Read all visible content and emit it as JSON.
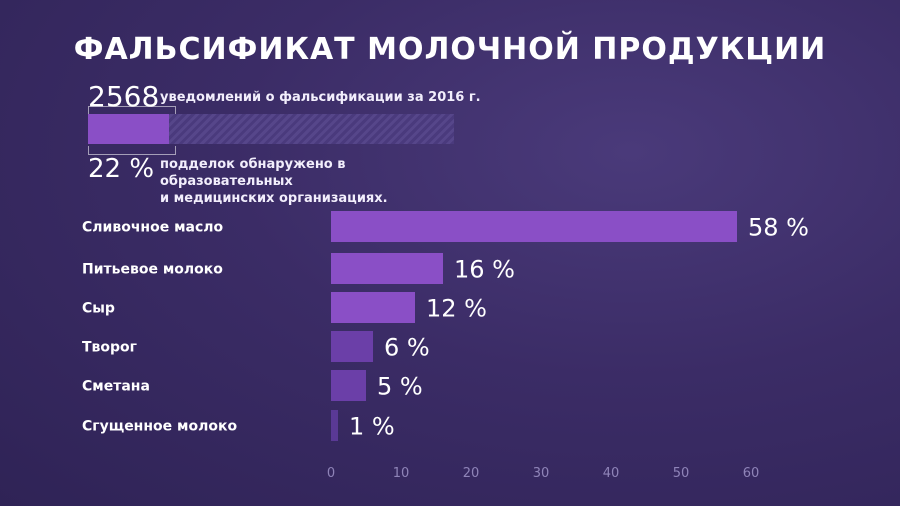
{
  "title": "ФАЛЬСИФИКАТ МОЛОЧНОЙ ПРОДУКЦИИ",
  "summary": {
    "count": "2568",
    "count_text": "уведомлений о фальсификации за 2016 г.",
    "share_value": 22,
    "share_label": "22 %",
    "share_text_line1": "подделок обнаружено в образовательных",
    "share_text_line2": "и медицинских организациях."
  },
  "colors": {
    "bar_strong": "#8a4fc6",
    "bar_light": "#6b3fa8",
    "bar_faint": "#5a3995"
  },
  "chart_data": {
    "type": "bar",
    "orientation": "horizontal",
    "categories": [
      "Сливочное масло",
      "Питьевое молоко",
      "Сыр",
      "Творог",
      "Сметана",
      "Сгущенное молоко"
    ],
    "values": [
      58,
      16,
      12,
      6,
      5,
      1
    ],
    "value_labels": [
      "58 %",
      "16 %",
      "12 %",
      "6 %",
      "5 %",
      "1 %"
    ],
    "xlim": [
      0,
      60
    ],
    "xticks": [
      "0",
      "10",
      "20",
      "30",
      "40",
      "50",
      "60"
    ],
    "title": "",
    "xlabel": "",
    "ylabel": ""
  }
}
